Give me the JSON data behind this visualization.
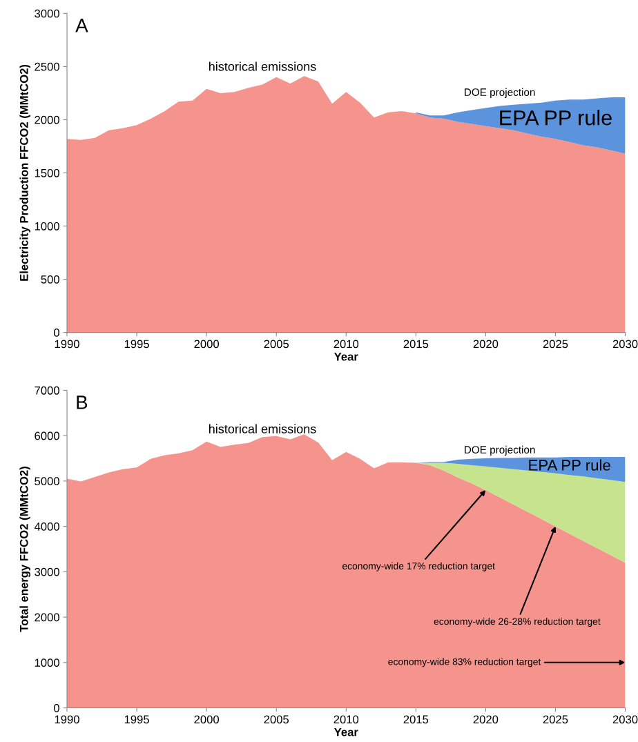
{
  "chart_data": [
    {
      "type": "area",
      "stacked": true,
      "title": "A",
      "xlabel": "Year",
      "ylabel": "Electricity Production FFCO2 (MMtCO2)",
      "x": [
        1990,
        1991,
        1992,
        1993,
        1994,
        1995,
        1996,
        1997,
        1998,
        1999,
        2000,
        2001,
        2002,
        2003,
        2004,
        2005,
        2006,
        2007,
        2008,
        2009,
        2010,
        2011,
        2012,
        2013,
        2014,
        2015,
        2016,
        2017,
        2018,
        2019,
        2020,
        2021,
        2022,
        2023,
        2024,
        2025,
        2026,
        2027,
        2028,
        2029,
        2030
      ],
      "xlim": [
        1990,
        2030
      ],
      "xticks": [
        1990,
        1995,
        2000,
        2005,
        2010,
        2015,
        2020,
        2025,
        2030
      ],
      "ylim": [
        0,
        3000
      ],
      "yticks": [
        0,
        500,
        1000,
        1500,
        2000,
        2500,
        3000
      ],
      "grid": false,
      "legend": false,
      "series": [
        {
          "color": "#f4948c",
          "values": [
            1820,
            1810,
            1830,
            1900,
            1920,
            1950,
            2010,
            2080,
            2170,
            2180,
            2290,
            2250,
            2260,
            2300,
            2330,
            2400,
            2340,
            2410,
            2360,
            2150,
            2260,
            2160,
            2020,
            2070,
            2080,
            2060,
            2020,
            2010,
            1980,
            1960,
            1940,
            1920,
            1900,
            1870,
            1840,
            1820,
            1790,
            1760,
            1740,
            1710,
            1680
          ]
        },
        {
          "color": "#5b93dc",
          "values": [
            null,
            null,
            null,
            null,
            null,
            null,
            null,
            null,
            null,
            null,
            null,
            null,
            null,
            null,
            null,
            null,
            null,
            null,
            null,
            null,
            null,
            null,
            null,
            null,
            null,
            10,
            20,
            30,
            90,
            130,
            170,
            210,
            240,
            280,
            320,
            360,
            400,
            430,
            460,
            500,
            530
          ]
        }
      ],
      "annotations": [
        "historical emissions",
        "DOE projection",
        "EPA PP rule"
      ]
    },
    {
      "type": "area",
      "stacked": true,
      "title": "B",
      "xlabel": "Year",
      "ylabel": "Total energy FFCO2 (MMtCO2)",
      "x": [
        1990,
        1991,
        1992,
        1993,
        1994,
        1995,
        1996,
        1997,
        1998,
        1999,
        2000,
        2001,
        2002,
        2003,
        2004,
        2005,
        2006,
        2007,
        2008,
        2009,
        2010,
        2011,
        2012,
        2013,
        2014,
        2015,
        2016,
        2017,
        2018,
        2019,
        2020,
        2021,
        2022,
        2023,
        2024,
        2025,
        2026,
        2027,
        2028,
        2029,
        2030
      ],
      "xlim": [
        1990,
        2030
      ],
      "xticks": [
        1990,
        1995,
        2000,
        2005,
        2010,
        2015,
        2020,
        2025,
        2030
      ],
      "ylim": [
        0,
        7000
      ],
      "yticks": [
        0,
        1000,
        2000,
        3000,
        4000,
        5000,
        6000,
        7000
      ],
      "grid": false,
      "legend": false,
      "series": [
        {
          "color": "#f4948c",
          "values": [
            5050,
            4990,
            5090,
            5190,
            5260,
            5300,
            5490,
            5570,
            5610,
            5680,
            5870,
            5750,
            5800,
            5840,
            5970,
            5990,
            5920,
            6030,
            5850,
            5460,
            5640,
            5490,
            5280,
            5410,
            5410,
            5400,
            5350,
            5230,
            5080,
            4950,
            4800,
            4640,
            4480,
            4320,
            4160,
            4000,
            3840,
            3680,
            3520,
            3360,
            3200
          ]
        },
        {
          "color": "#c6e48e",
          "values": [
            null,
            null,
            null,
            null,
            null,
            null,
            null,
            null,
            null,
            null,
            null,
            null,
            null,
            null,
            null,
            null,
            null,
            null,
            null,
            null,
            null,
            null,
            null,
            null,
            null,
            0,
            50,
            170,
            300,
            400,
            520,
            650,
            780,
            910,
            1040,
            1170,
            1290,
            1420,
            1540,
            1660,
            1780
          ]
        },
        {
          "color": "#5b93dc",
          "values": [
            null,
            null,
            null,
            null,
            null,
            null,
            null,
            null,
            null,
            null,
            null,
            null,
            null,
            null,
            null,
            null,
            null,
            null,
            null,
            null,
            null,
            null,
            null,
            null,
            null,
            0,
            20,
            20,
            90,
            140,
            180,
            220,
            250,
            290,
            320,
            350,
            400,
            430,
            470,
            510,
            550
          ]
        }
      ],
      "annotations": [
        "historical emissions",
        "DOE projection",
        "EPA PP rule",
        {
          "text": "economy-wide 17% reduction target",
          "x": 2020,
          "y": 4800
        },
        {
          "text": "economy-wide 26-28% reduction target",
          "x": 2025,
          "y": 4000
        },
        {
          "text": "economy-wide 83% reduction target",
          "x": 2030,
          "y": 1000
        }
      ]
    }
  ]
}
